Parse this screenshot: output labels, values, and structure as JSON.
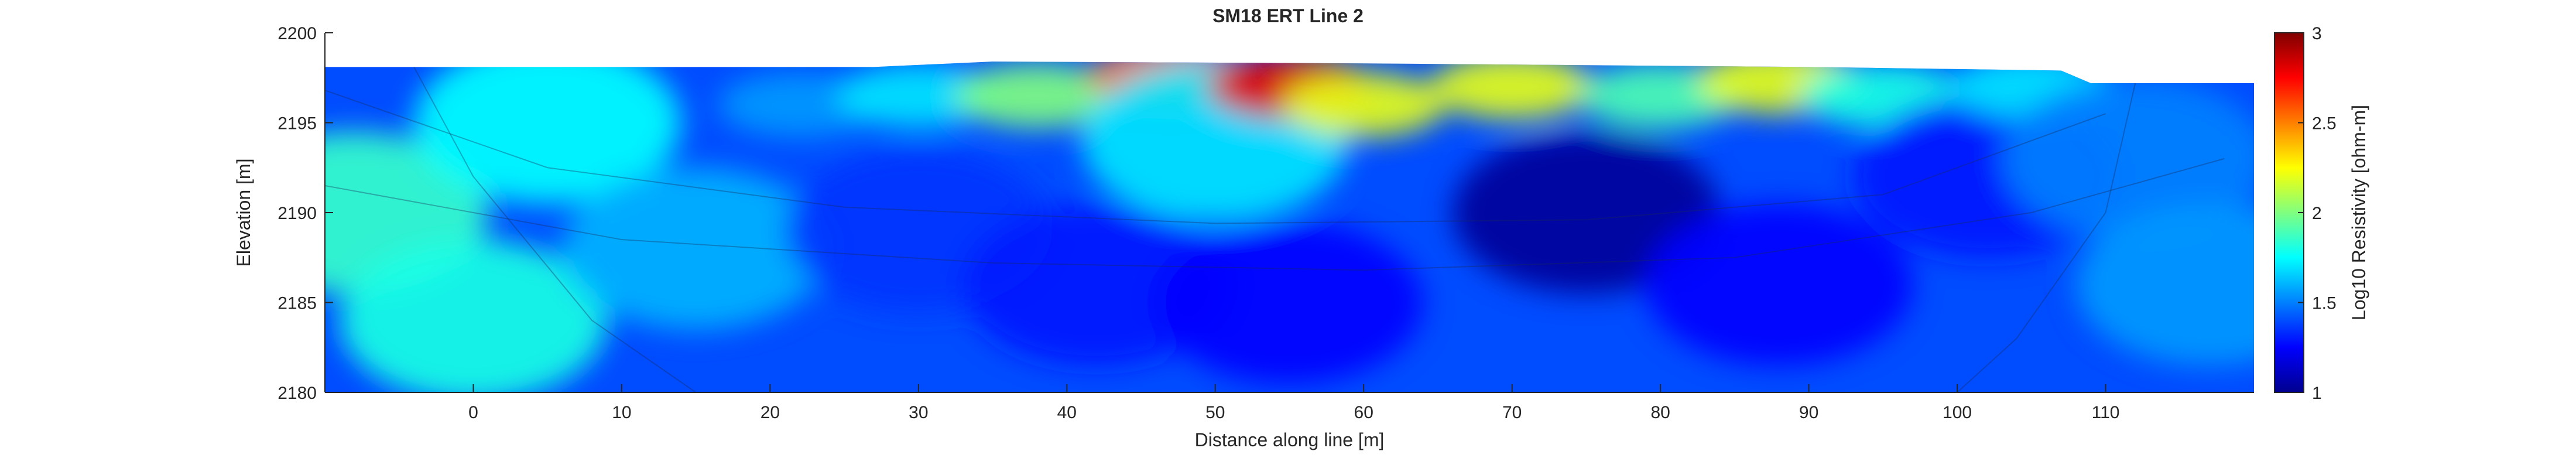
{
  "chart_data": {
    "type": "heatmap",
    "title": "SM18 ERT Line 2",
    "xlabel": "Distance along line [m]",
    "ylabel": "Elevation [m]",
    "xlim": [
      -10,
      120
    ],
    "ylim": [
      2180,
      2200
    ],
    "xticks": [
      0,
      10,
      20,
      30,
      40,
      50,
      60,
      70,
      80,
      90,
      100,
      110
    ],
    "yticks": [
      2180,
      2185,
      2190,
      2195,
      2200
    ],
    "colorbar": {
      "label": "Log10 Resistivity [ohm-m]",
      "colormap": "jet",
      "clim": [
        1,
        3
      ],
      "ticks": [
        1,
        1.5,
        2,
        2.5,
        3
      ]
    },
    "surface_topography": [
      {
        "x": -10,
        "y": 2198.1
      },
      {
        "x": 27,
        "y": 2198.1
      },
      {
        "x": 35,
        "y": 2198.4
      },
      {
        "x": 60,
        "y": 2198.3
      },
      {
        "x": 90,
        "y": 2198.1
      },
      {
        "x": 107,
        "y": 2197.9
      },
      {
        "x": 109,
        "y": 2197.2
      },
      {
        "x": 120,
        "y": 2197.2
      }
    ],
    "resistivity_anomalies": [
      {
        "x": -8,
        "y": 2190,
        "value": 1.85
      },
      {
        "x": 0,
        "y": 2184,
        "value": 1.8
      },
      {
        "x": 5,
        "y": 2195,
        "value": 1.75
      },
      {
        "x": 15,
        "y": 2188,
        "value": 1.6
      },
      {
        "x": 22,
        "y": 2196,
        "value": 1.55
      },
      {
        "x": 30,
        "y": 2189,
        "value": 1.35
      },
      {
        "x": 30,
        "y": 2196.5,
        "value": 1.7
      },
      {
        "x": 38,
        "y": 2196.5,
        "value": 2.0
      },
      {
        "x": 42,
        "y": 2186,
        "value": 1.3
      },
      {
        "x": 47,
        "y": 2197.5,
        "value": 2.5
      },
      {
        "x": 50,
        "y": 2194,
        "value": 1.7
      },
      {
        "x": 55,
        "y": 2197,
        "value": 2.8
      },
      {
        "x": 55,
        "y": 2185,
        "value": 1.25
      },
      {
        "x": 60,
        "y": 2196,
        "value": 2.2
      },
      {
        "x": 70,
        "y": 2197,
        "value": 2.2
      },
      {
        "x": 75,
        "y": 2190,
        "value": 1.05
      },
      {
        "x": 80,
        "y": 2196.5,
        "value": 1.9
      },
      {
        "x": 88,
        "y": 2197.3,
        "value": 2.2
      },
      {
        "x": 88,
        "y": 2186,
        "value": 1.25
      },
      {
        "x": 95,
        "y": 2196.5,
        "value": 1.8
      },
      {
        "x": 102,
        "y": 2192,
        "value": 1.3
      },
      {
        "x": 105,
        "y": 2197,
        "value": 1.7
      },
      {
        "x": 112,
        "y": 2193,
        "value": 1.5
      },
      {
        "x": 117,
        "y": 2186,
        "value": 1.55
      }
    ]
  }
}
